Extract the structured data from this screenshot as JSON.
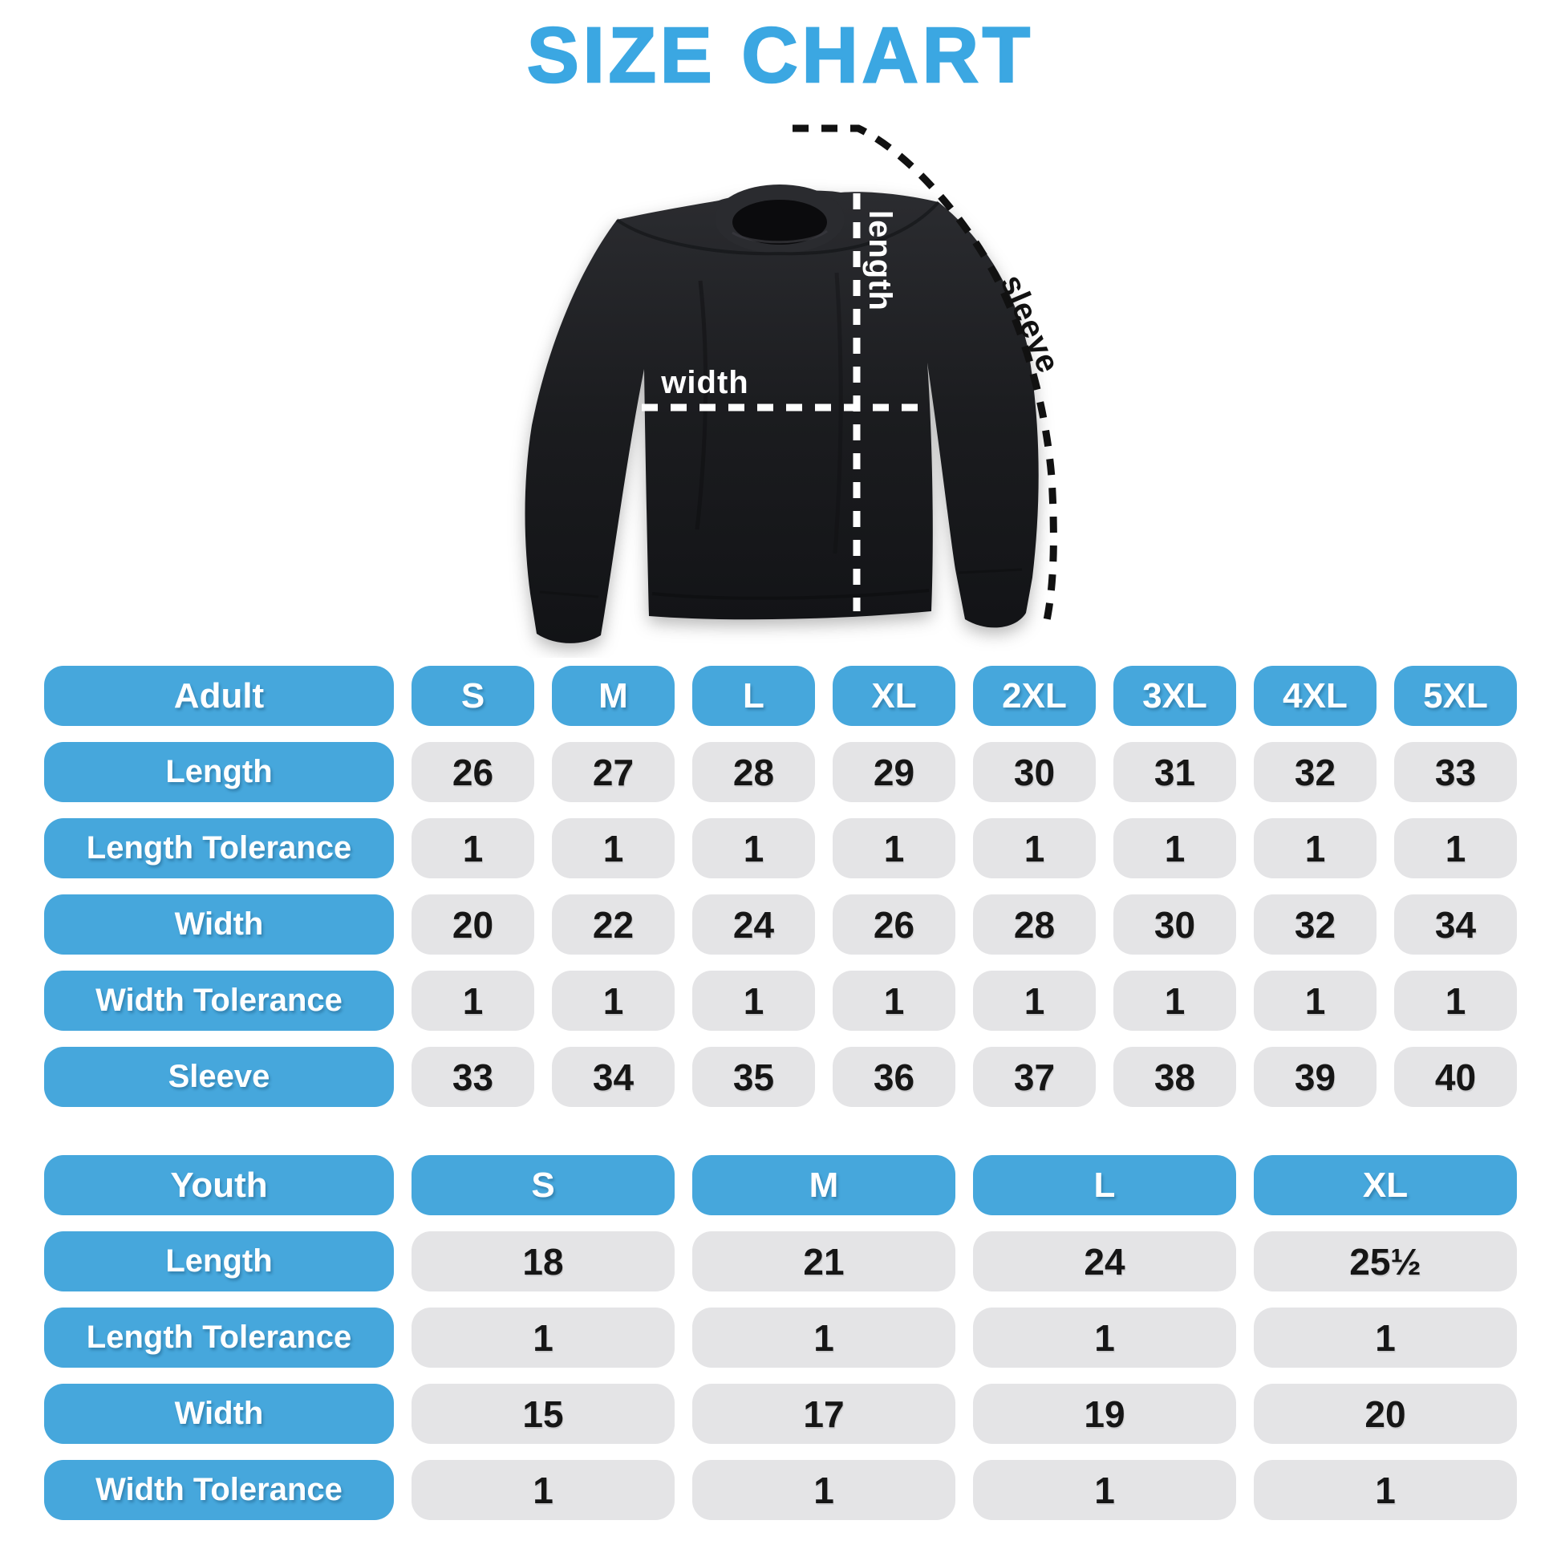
{
  "title": "SIZE CHART",
  "colors": {
    "title_blue": "#3BA7E2",
    "cell_blue": "#46A7DC",
    "cell_gray": "#E4E4E6",
    "number_text": "#161616",
    "label_text": "#FFFFFF",
    "shirt_black": "#1C1D20",
    "measure_line_light": "#FFFFFF",
    "measure_line_dark": "#111111"
  },
  "diagram": {
    "garment": "crewneck-sweatshirt",
    "labels": {
      "length": "length",
      "width": "width",
      "sleeve": "sleeve"
    }
  },
  "adult_table": {
    "header_label": "Adult",
    "sizes": [
      "S",
      "M",
      "L",
      "XL",
      "2XL",
      "3XL",
      "4XL",
      "5XL"
    ],
    "rows": [
      {
        "label": "Length",
        "values": [
          "26",
          "27",
          "28",
          "29",
          "30",
          "31",
          "32",
          "33"
        ]
      },
      {
        "label": "Length Tolerance",
        "values": [
          "1",
          "1",
          "1",
          "1",
          "1",
          "1",
          "1",
          "1"
        ]
      },
      {
        "label": "Width",
        "values": [
          "20",
          "22",
          "24",
          "26",
          "28",
          "30",
          "32",
          "34"
        ]
      },
      {
        "label": "Width Tolerance",
        "values": [
          "1",
          "1",
          "1",
          "1",
          "1",
          "1",
          "1",
          "1"
        ]
      },
      {
        "label": "Sleeve",
        "values": [
          "33",
          "34",
          "35",
          "36",
          "37",
          "38",
          "39",
          "40"
        ]
      }
    ]
  },
  "youth_table": {
    "header_label": "Youth",
    "sizes": [
      "S",
      "M",
      "L",
      "XL"
    ],
    "rows": [
      {
        "label": "Length",
        "values": [
          "18",
          "21",
          "24",
          "25½"
        ]
      },
      {
        "label": "Length Tolerance",
        "values": [
          "1",
          "1",
          "1",
          "1"
        ]
      },
      {
        "label": "Width",
        "values": [
          "15",
          "17",
          "19",
          "20"
        ]
      },
      {
        "label": "Width Tolerance",
        "values": [
          "1",
          "1",
          "1",
          "1"
        ]
      }
    ]
  }
}
